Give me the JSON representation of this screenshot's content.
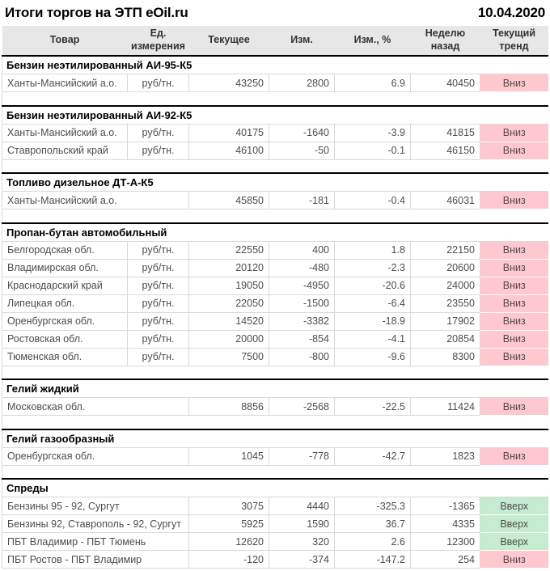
{
  "colors": {
    "header_bg": "#e7e7e7",
    "grid_border": "#d9d9d9",
    "positive": "#00a651",
    "negative": "#e80000",
    "trend_up_bg": "#c6ecd0",
    "trend_up_text": "#00933b",
    "trend_down_bg": "#ffc7ce",
    "trend_down_text": "#c00000"
  },
  "chart_data": {
    "type": "table",
    "title": "Итоги торгов на ЭТП eOil.ru",
    "date": "10.04.2020",
    "columns": [
      "Товар",
      "Ед. измерения",
      "Текущее",
      "Изм.",
      "Изм., %",
      "Неделю назад",
      "Текущий тренд"
    ],
    "sections": [
      {
        "title": "Бензин неэтилированный АИ-95-К5",
        "rows": [
          {
            "name": "Ханты-Мансийский а.о.",
            "unit": "руб/тн.",
            "current": "43250",
            "change": "2800",
            "change_pct": "6.9",
            "week_ago": "40450",
            "trend": "Вниз",
            "trend_dir": "down"
          }
        ]
      },
      {
        "title": "Бензин неэтилированный АИ-92-К5",
        "rows": [
          {
            "name": "Ханты-Мансийский а.о.",
            "unit": "руб/тн.",
            "current": "40175",
            "change": "-1640",
            "change_pct": "-3.9",
            "week_ago": "41815",
            "trend": "Вниз",
            "trend_dir": "down"
          },
          {
            "name": "Ставропольский край",
            "unit": "руб/тн.",
            "current": "46100",
            "change": "-50",
            "change_pct": "-0.1",
            "week_ago": "46150",
            "trend": "Вниз",
            "trend_dir": "down"
          }
        ]
      },
      {
        "title": "Топливо дизельное ДТ-А-К5",
        "rows": [
          {
            "name": "Ханты-Мансийский а.о.",
            "unit": "",
            "current": "45850",
            "change": "-181",
            "change_pct": "-0.4",
            "week_ago": "46031",
            "trend": "Вниз",
            "trend_dir": "down"
          }
        ]
      },
      {
        "title": "Пропан-бутан автомобильный",
        "rows": [
          {
            "name": "Белгородская обл.",
            "unit": "руб/тн.",
            "current": "22550",
            "change": "400",
            "change_pct": "1.8",
            "week_ago": "22150",
            "trend": "Вниз",
            "trend_dir": "down"
          },
          {
            "name": "Владимирская обл.",
            "unit": "руб/тн.",
            "current": "20120",
            "change": "-480",
            "change_pct": "-2.3",
            "week_ago": "20600",
            "trend": "Вниз",
            "trend_dir": "down"
          },
          {
            "name": "Краснодарский край",
            "unit": "руб/тн.",
            "current": "19050",
            "change": "-4950",
            "change_pct": "-20.6",
            "week_ago": "24000",
            "trend": "Вниз",
            "trend_dir": "down"
          },
          {
            "name": "Липецкая обл.",
            "unit": "руб/тн.",
            "current": "22050",
            "change": "-1500",
            "change_pct": "-6.4",
            "week_ago": "23550",
            "trend": "Вниз",
            "trend_dir": "down"
          },
          {
            "name": "Оренбургская обл.",
            "unit": "руб/тн.",
            "current": "14520",
            "change": "-3382",
            "change_pct": "-18.9",
            "week_ago": "17902",
            "trend": "Вниз",
            "trend_dir": "down"
          },
          {
            "name": "Ростовская обл.",
            "unit": "руб/тн.",
            "current": "20000",
            "change": "-854",
            "change_pct": "-4.1",
            "week_ago": "20854",
            "trend": "Вниз",
            "trend_dir": "down"
          },
          {
            "name": "Тюменская обл.",
            "unit": "руб/тн.",
            "current": "7500",
            "change": "-800",
            "change_pct": "-9.6",
            "week_ago": "8300",
            "trend": "Вниз",
            "trend_dir": "down"
          }
        ]
      },
      {
        "title": "Гелий жидкий",
        "rows": [
          {
            "name": "Московская обл.",
            "unit": "",
            "current": "8856",
            "change": "-2568",
            "change_pct": "-22.5",
            "week_ago": "11424",
            "trend": "Вниз",
            "trend_dir": "down"
          }
        ]
      },
      {
        "title": "Гелий газообразный",
        "rows": [
          {
            "name": "Оренбургская обл.",
            "unit": "",
            "current": "1045",
            "change": "-778",
            "change_pct": "-42.7",
            "week_ago": "1823",
            "trend": "Вниз",
            "trend_dir": "down"
          }
        ]
      },
      {
        "title": "Спреды",
        "rows": [
          {
            "name": "Бензины 95 - 92, Сургут",
            "unit": "",
            "current": "3075",
            "change": "4440",
            "change_pct": "-325.3",
            "week_ago": "-1365",
            "trend": "Вверх",
            "trend_dir": "up"
          },
          {
            "name": "Бензины 92, Ставрополь - 92, Сургут",
            "unit": "",
            "current": "5925",
            "change": "1590",
            "change_pct": "36.7",
            "week_ago": "4335",
            "trend": "Вверх",
            "trend_dir": "up"
          },
          {
            "name": "ПБТ Владимир - ПБТ Тюмень",
            "unit": "",
            "current": "12620",
            "change": "320",
            "change_pct": "2.6",
            "week_ago": "12300",
            "trend": "Вверх",
            "trend_dir": "up"
          },
          {
            "name": "ПБТ Ростов - ПБТ Владимир",
            "unit": "",
            "current": "-120",
            "change": "-374",
            "change_pct": "-147.2",
            "week_ago": "254",
            "trend": "Вниз",
            "trend_dir": "down"
          }
        ]
      }
    ]
  }
}
